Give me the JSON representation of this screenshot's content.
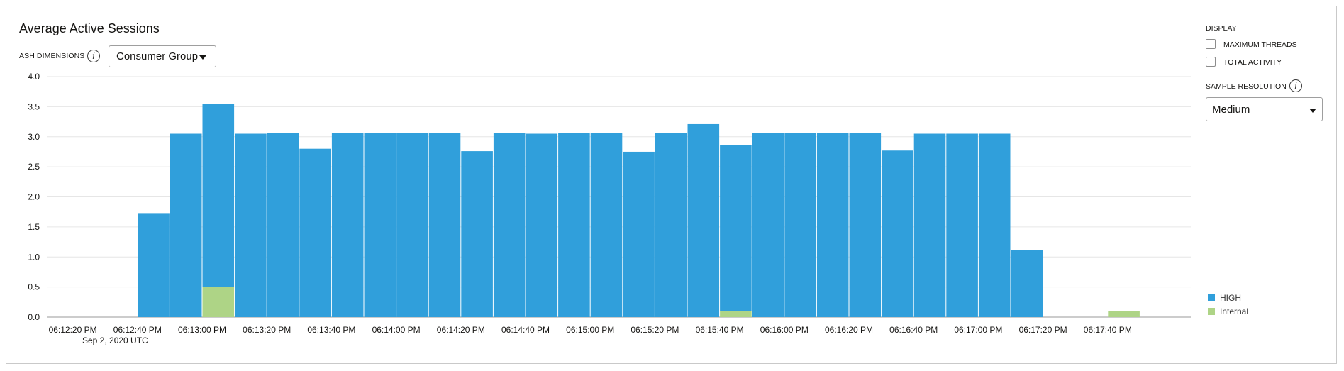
{
  "title": "Average Active Sessions",
  "ash_dimensions": {
    "label": "ASH DIMENSIONS",
    "info_icon": "info-icon",
    "selected": "Consumer Group"
  },
  "display": {
    "label": "DISPLAY",
    "options": [
      {
        "label": "MAXIMUM THREADS",
        "checked": false
      },
      {
        "label": "TOTAL ACTIVITY",
        "checked": false
      }
    ]
  },
  "sample_resolution": {
    "label": "SAMPLE RESOLUTION",
    "info_icon": "info-icon",
    "selected": "Medium"
  },
  "colors": {
    "HIGH": "#309fdb",
    "Internal": "#aed486"
  },
  "chart_data": {
    "type": "bar",
    "stacked": true,
    "title": "Average Active Sessions",
    "xlabel": "",
    "ylabel": "",
    "ylim": [
      0,
      4.0
    ],
    "yticks": [
      "0.0",
      "0.5",
      "1.0",
      "1.5",
      "2.0",
      "2.5",
      "3.0",
      "3.5",
      "4.0"
    ],
    "xticks": [
      "06:12:20 PM",
      "06:12:40 PM",
      "06:13:00 PM",
      "06:13:20 PM",
      "06:13:40 PM",
      "06:14:00 PM",
      "06:14:20 PM",
      "06:14:40 PM",
      "06:15:00 PM",
      "06:15:20 PM",
      "06:15:40 PM",
      "06:16:00 PM",
      "06:16:20 PM",
      "06:16:40 PM",
      "06:17:00 PM",
      "06:17:20 PM",
      "06:17:40 PM"
    ],
    "x_date_label": "Sep 2, 2020 UTC",
    "grid": true,
    "legend_position": "bottom-right",
    "bin_seconds": 10,
    "bins": [
      "06:12:10 PM",
      "06:12:20 PM",
      "06:12:30 PM",
      "06:12:40 PM",
      "06:12:50 PM",
      "06:13:00 PM",
      "06:13:10 PM",
      "06:13:20 PM",
      "06:13:30 PM",
      "06:13:40 PM",
      "06:13:50 PM",
      "06:14:00 PM",
      "06:14:10 PM",
      "06:14:20 PM",
      "06:14:30 PM",
      "06:14:40 PM",
      "06:14:50 PM",
      "06:15:00 PM",
      "06:15:10 PM",
      "06:15:20 PM",
      "06:15:30 PM",
      "06:15:40 PM",
      "06:15:50 PM",
      "06:16:00 PM",
      "06:16:10 PM",
      "06:16:20 PM",
      "06:16:30 PM",
      "06:16:40 PM",
      "06:16:50 PM",
      "06:17:00 PM",
      "06:17:10 PM",
      "06:17:20 PM",
      "06:17:30 PM",
      "06:17:40 PM"
    ],
    "series": [
      {
        "name": "Internal",
        "values": [
          0,
          0,
          0,
          0,
          0,
          0.5,
          0,
          0,
          0,
          0,
          0,
          0,
          0,
          0,
          0,
          0,
          0,
          0,
          0,
          0,
          0,
          0.1,
          0,
          0,
          0,
          0,
          0,
          0,
          0,
          0,
          0,
          0,
          0,
          0.1
        ]
      },
      {
        "name": "HIGH",
        "values": [
          0,
          0,
          0,
          1.73,
          3.05,
          3.05,
          3.05,
          3.06,
          2.8,
          3.06,
          3.06,
          3.06,
          3.06,
          2.76,
          3.06,
          3.05,
          3.06,
          3.06,
          2.75,
          3.06,
          3.21,
          2.76,
          3.06,
          3.06,
          3.06,
          3.06,
          2.77,
          3.05,
          3.05,
          3.05,
          1.12,
          0,
          0,
          0
        ]
      }
    ]
  }
}
